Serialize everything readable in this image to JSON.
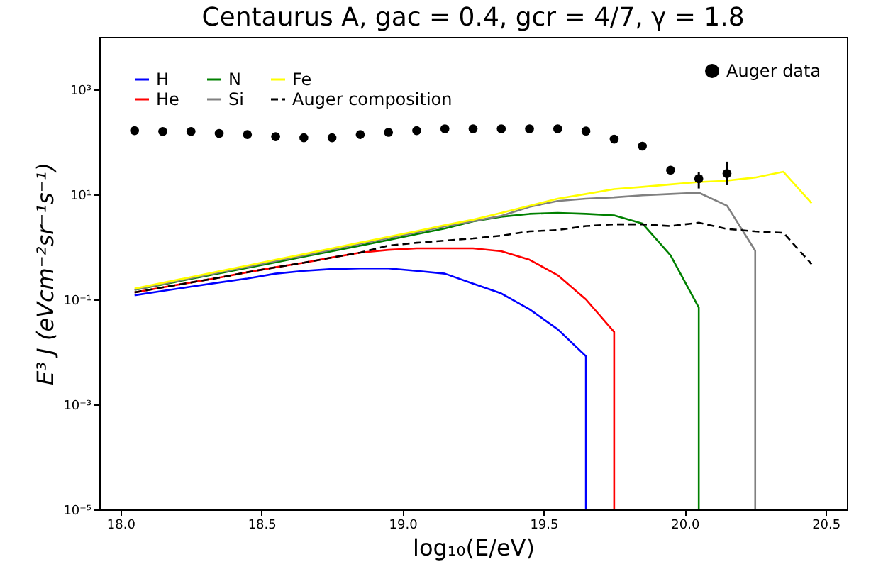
{
  "chart_data": {
    "type": "line",
    "title": "Centaurus A, gac = 0.4, gcr = 4/7, γ = 1.8",
    "xlabel": "log₁₀(E/eV)",
    "ylabel": "E³ J (eVcm⁻²sr⁻¹s⁻¹)",
    "x": [
      18.05,
      18.15,
      18.25,
      18.35,
      18.45,
      18.55,
      18.65,
      18.75,
      18.85,
      18.95,
      19.05,
      19.15,
      19.25,
      19.35,
      19.45,
      19.55,
      19.65,
      19.75,
      19.85,
      19.95,
      20.05,
      20.15,
      20.25,
      20.35,
      20.45
    ],
    "series": [
      {
        "name": "H",
        "color": "#0000ff",
        "x": [
          18.05,
          18.15,
          18.25,
          18.35,
          18.45,
          18.55,
          18.65,
          18.75,
          18.85,
          18.95,
          19.05,
          19.15,
          19.25,
          19.35,
          19.45,
          19.55,
          19.65,
          19.65
        ],
        "values": [
          0.12,
          0.145,
          0.175,
          0.21,
          0.25,
          0.31,
          0.35,
          0.38,
          0.39,
          0.39,
          0.35,
          0.31,
          0.2,
          0.13,
          0.065,
          0.027,
          0.0083,
          1e-05
        ]
      },
      {
        "name": "He",
        "color": "#ff0000",
        "x": [
          18.05,
          18.15,
          18.25,
          18.35,
          18.45,
          18.55,
          18.65,
          18.75,
          18.85,
          18.95,
          19.05,
          19.15,
          19.25,
          19.35,
          19.45,
          19.55,
          19.65,
          19.75,
          19.75
        ],
        "values": [
          0.136,
          0.17,
          0.21,
          0.26,
          0.33,
          0.41,
          0.5,
          0.63,
          0.78,
          0.88,
          0.94,
          0.94,
          0.94,
          0.83,
          0.57,
          0.29,
          0.1,
          0.024,
          1e-05
        ]
      },
      {
        "name": "N",
        "color": "#008000",
        "x": [
          18.05,
          18.15,
          18.25,
          18.35,
          18.45,
          18.55,
          18.65,
          18.75,
          18.85,
          18.95,
          19.05,
          19.15,
          19.25,
          19.35,
          19.45,
          19.55,
          19.65,
          19.75,
          19.85,
          19.95,
          20.05,
          20.05
        ],
        "values": [
          0.152,
          0.193,
          0.247,
          0.314,
          0.4,
          0.51,
          0.65,
          0.83,
          1.06,
          1.36,
          1.75,
          2.24,
          3.06,
          3.77,
          4.26,
          4.45,
          4.26,
          4.0,
          2.8,
          0.69,
          0.07,
          1e-05
        ]
      },
      {
        "name": "Si",
        "color": "#808080",
        "x": [
          18.05,
          18.15,
          18.25,
          18.35,
          18.45,
          18.55,
          18.65,
          18.75,
          18.85,
          18.95,
          19.05,
          19.15,
          19.25,
          19.35,
          19.45,
          19.55,
          19.65,
          19.75,
          19.85,
          19.95,
          20.05,
          20.15,
          20.25,
          20.25
        ],
        "values": [
          0.153,
          0.197,
          0.254,
          0.326,
          0.42,
          0.54,
          0.69,
          0.89,
          1.15,
          1.48,
          1.9,
          2.47,
          3.1,
          3.9,
          5.8,
          7.5,
          8.3,
          8.8,
          9.6,
          10.2,
          10.8,
          6.1,
          0.85,
          1e-05
        ]
      },
      {
        "name": "Fe",
        "color": "#ffff00",
        "values": [
          0.161,
          0.207,
          0.267,
          0.343,
          0.443,
          0.57,
          0.73,
          0.94,
          1.21,
          1.56,
          2.0,
          2.6,
          3.3,
          4.45,
          6.1,
          8.3,
          10.2,
          12.6,
          13.9,
          15.5,
          17.2,
          18.3,
          21,
          27,
          6.8
        ]
      },
      {
        "name": "Auger composition",
        "color": "#000000",
        "line_style": "dashed",
        "values": [
          0.136,
          0.17,
          0.21,
          0.26,
          0.33,
          0.41,
          0.5,
          0.63,
          0.78,
          1.06,
          1.2,
          1.32,
          1.45,
          1.64,
          1.98,
          2.1,
          2.5,
          2.7,
          2.7,
          2.5,
          2.9,
          2.2,
          1.98,
          1.86,
          0.47
        ]
      },
      {
        "name": "Auger data",
        "type": "scatter",
        "marker": "circle",
        "color": "#000000",
        "x": [
          18.05,
          18.15,
          18.25,
          18.35,
          18.45,
          18.55,
          18.65,
          18.75,
          18.85,
          18.95,
          19.05,
          19.15,
          19.25,
          19.35,
          19.45,
          19.55,
          19.65,
          19.75,
          19.85,
          19.95,
          20.05,
          20.15
        ],
        "values": [
          164,
          158,
          158,
          145,
          138,
          126,
          120,
          120,
          138,
          152,
          164,
          178,
          178,
          178,
          178,
          178,
          161,
          113,
          83,
          29,
          20,
          25
        ],
        "errors": [
          null,
          null,
          null,
          null,
          null,
          null,
          null,
          null,
          null,
          null,
          null,
          null,
          null,
          null,
          null,
          null,
          null,
          null,
          null,
          null,
          [
            13,
            27
          ],
          [
            15,
            42
          ]
        ]
      }
    ],
    "xlim": [
      17.925,
      20.575
    ],
    "xticks": [
      {
        "value": 18,
        "label": "18.0"
      },
      {
        "value": 18.5,
        "label": "18.5"
      },
      {
        "value": 19,
        "label": "19.0"
      },
      {
        "value": 19.5,
        "label": "19.5"
      },
      {
        "value": 20,
        "label": "20.0"
      },
      {
        "value": 20.5,
        "label": "20.5"
      }
    ],
    "ylim": [
      1e-05,
      10000
    ],
    "log": "y",
    "yticks": [
      {
        "value": 1e-05,
        "label": "10⁻⁵"
      },
      {
        "value": 0.001,
        "label": "10⁻³"
      },
      {
        "value": 0.1,
        "label": "10⁻¹"
      },
      {
        "value": 10,
        "label": "10¹"
      },
      {
        "value": 1000,
        "label": "10³"
      }
    ],
    "grid": false,
    "legend": "top",
    "line_style": "solid"
  }
}
